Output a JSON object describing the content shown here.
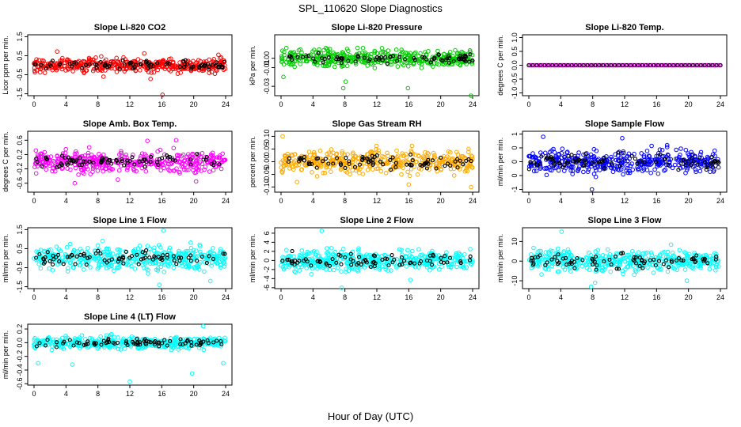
{
  "figure": {
    "title": "SPL_110620  Slope Diagnostics",
    "xlabel": "Hour of Day (UTC)"
  },
  "chart_data": [
    {
      "type": "scatter",
      "title": "Slope Li-820 CO2",
      "xlabel": "",
      "ylabel": "Licor ppm per min.",
      "xlim": [
        0,
        24
      ],
      "xticks": [
        "0",
        "4",
        "8",
        "12",
        "16",
        "20",
        "24"
      ],
      "ylim": [
        -1.6,
        1.6
      ],
      "yticks": [
        -1.5,
        -0.5,
        0.5,
        1.5
      ],
      "ytick_labels": [
        "-1.5",
        "-0.5",
        "0.5",
        "1.5"
      ],
      "color": "#ff0000",
      "spread": 0.32,
      "extremes": [
        [
          16.1,
          -1.55
        ],
        [
          14.6,
          -0.72
        ],
        [
          2.9,
          0.72
        ],
        [
          13.8,
          0.62
        ],
        [
          23.1,
          0.55
        ],
        [
          8.7,
          -0.6
        ]
      ]
    },
    {
      "type": "scatter",
      "title": "Slope Li-820 Pressure",
      "xlabel": "",
      "ylabel": "kPa per min.",
      "xlim": [
        0,
        24
      ],
      "xticks": [
        "0",
        "4",
        "8",
        "12",
        "16",
        "20",
        "24"
      ],
      "ylim": [
        -0.04,
        0.025
      ],
      "yticks": [
        -0.03,
        -0.01,
        0.0
      ],
      "ytick_labels": [
        "-0.03",
        "-0.01",
        "0.00"
      ],
      "color": "#00cc00",
      "spread": 0.008,
      "extremes": [
        [
          7.8,
          -0.032
        ],
        [
          15.9,
          -0.032
        ],
        [
          23.8,
          -0.04
        ],
        [
          8.1,
          -0.025
        ],
        [
          0.3,
          -0.02
        ]
      ]
    },
    {
      "type": "scatter",
      "title": "Slope Li-820 Temp.",
      "xlabel": "",
      "ylabel": "degrees C per min.",
      "xlim": [
        0,
        24
      ],
      "xticks": [
        "0",
        "4",
        "8",
        "12",
        "16",
        "20",
        "24"
      ],
      "ylim": [
        -1.1,
        1.1
      ],
      "yticks": [
        -1.0,
        -0.5,
        0.0,
        0.5,
        1.0
      ],
      "ytick_labels": [
        "-1.0",
        "-0.5",
        "0.0",
        "0.5",
        "1.0"
      ],
      "color": "#ff00ff",
      "spread": 0.0,
      "extremes": []
    },
    {
      "type": "scatter",
      "title": "Slope Amb. Box Temp.",
      "xlabel": "",
      "ylabel": "degrees C per min.",
      "xlim": [
        0,
        24
      ],
      "xticks": [
        "0",
        "4",
        "8",
        "12",
        "16",
        "20",
        "24"
      ],
      "ylim": [
        -0.85,
        0.85
      ],
      "yticks": [
        -0.6,
        -0.2,
        0.2,
        0.6
      ],
      "ytick_labels": [
        "-0.6",
        "-0.2",
        "0.2",
        "0.6"
      ],
      "color": "#ff00ff",
      "spread": 0.25,
      "extremes": [
        [
          10.5,
          -0.5
        ],
        [
          17.8,
          0.6
        ],
        [
          20.3,
          -0.55
        ],
        [
          5.1,
          -0.6
        ],
        [
          14.2,
          0.58
        ]
      ]
    },
    {
      "type": "scatter",
      "title": "Slope Gas Stream RH",
      "xlabel": "",
      "ylabel": "percent per min.",
      "xlim": [
        0,
        24
      ],
      "xticks": [
        "0",
        "4",
        "8",
        "12",
        "16",
        "20",
        "24"
      ],
      "ylim": [
        -0.12,
        0.12
      ],
      "yticks": [
        -0.1,
        -0.05,
        0.0,
        0.05,
        0.1
      ],
      "ytick_labels": [
        "-0.10",
        "-0.05",
        "0.00",
        "0.05",
        "0.10"
      ],
      "color": "#ffaa00",
      "spread": 0.04,
      "extremes": [
        [
          0.2,
          0.1
        ],
        [
          23.8,
          -0.1
        ],
        [
          16.0,
          -0.09
        ],
        [
          2.0,
          -0.08
        ]
      ]
    },
    {
      "type": "scatter",
      "title": "Slope Sample Flow",
      "xlabel": "",
      "ylabel": "ml/min per min.",
      "xlim": [
        0,
        24
      ],
      "xticks": [
        "0",
        "4",
        "8",
        "12",
        "16",
        "20",
        "24"
      ],
      "ylim": [
        -1.1,
        1.1
      ],
      "yticks": [
        -1.0,
        -0.5,
        0.0,
        0.5,
        1.0
      ],
      "ytick_labels": [
        "-1",
        "0",
        "0",
        "0",
        "1"
      ],
      "color": "#0000ff",
      "spread": 0.38,
      "extremes": [
        [
          7.9,
          -1.0
        ],
        [
          1.8,
          0.9
        ],
        [
          11.7,
          0.85
        ]
      ]
    },
    {
      "type": "scatter",
      "title": "Slope Line 1 Flow",
      "xlabel": "",
      "ylabel": "ml/min per min.",
      "xlim": [
        0,
        24
      ],
      "xticks": [
        "0",
        "4",
        "8",
        "12",
        "16",
        "20",
        "24"
      ],
      "ylim": [
        -1.6,
        1.6
      ],
      "yticks": [
        -1.5,
        -0.5,
        0.5,
        1.5
      ],
      "ytick_labels": [
        "-1.5",
        "-0.5",
        "0.5",
        "1.5"
      ],
      "color": "#00ffff",
      "spread": 0.55,
      "extremes": [
        [
          16.2,
          1.45
        ],
        [
          15.7,
          -1.4
        ],
        [
          22.1,
          -1.2
        ]
      ]
    },
    {
      "type": "scatter",
      "title": "Slope Line 2 Flow",
      "xlabel": "",
      "ylabel": "ml/min per min.",
      "xlim": [
        0,
        24
      ],
      "xticks": [
        "0",
        "4",
        "8",
        "12",
        "16",
        "20",
        "24"
      ],
      "ylim": [
        -6.2,
        7.2
      ],
      "yticks": [
        -6,
        -4,
        -2,
        0,
        2,
        4,
        6
      ],
      "ytick_labels": [
        "-6",
        "-4",
        "-2",
        "0",
        "2",
        "4",
        "6"
      ],
      "color": "#00ffff",
      "spread": 2.0,
      "extremes": [
        [
          7.6,
          -6.0
        ],
        [
          5.1,
          6.5
        ],
        [
          16.2,
          -4.3
        ]
      ]
    },
    {
      "type": "scatter",
      "title": "Slope Line 3 Flow",
      "xlabel": "",
      "ylabel": "ml/min per min.",
      "xlim": [
        0,
        24
      ],
      "xticks": [
        "0",
        "4",
        "8",
        "12",
        "16",
        "20",
        "24"
      ],
      "ylim": [
        -14,
        17
      ],
      "yticks": [
        -10,
        0,
        10
      ],
      "ytick_labels": [
        "-10",
        "0",
        "10"
      ],
      "color": "#00ffff",
      "spread": 5.0,
      "extremes": [
        [
          7.8,
          -13
        ],
        [
          8.3,
          -11
        ],
        [
          19.8,
          -10
        ],
        [
          4.1,
          15
        ]
      ]
    },
    {
      "type": "scatter",
      "title": "Slope Line 4 (LT) Flow",
      "xlabel": "",
      "ylabel": "ml/min per min.",
      "xlim": [
        0,
        24
      ],
      "xticks": [
        "0",
        "4",
        "8",
        "12",
        "16",
        "20",
        "24"
      ],
      "ylim": [
        -0.62,
        0.27
      ],
      "yticks": [
        -0.6,
        -0.4,
        -0.2,
        0.0,
        0.2
      ],
      "ytick_labels": [
        "-0.6",
        "-0.4",
        "-0.2",
        "0.0",
        "0.2"
      ],
      "color": "#00ffff",
      "spread": 0.08,
      "extremes": [
        [
          12.0,
          -0.57
        ],
        [
          19.8,
          -0.45
        ],
        [
          0.5,
          -0.3
        ],
        [
          4.8,
          -0.32
        ],
        [
          21.2,
          0.24
        ],
        [
          23.7,
          -0.3
        ]
      ]
    }
  ]
}
